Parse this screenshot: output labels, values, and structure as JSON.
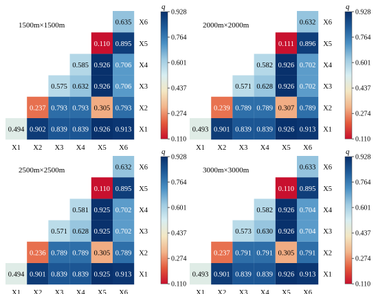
{
  "colorbar": {
    "label": "q",
    "min": 0.11,
    "max": 0.928,
    "ticks": [
      "0.928",
      "0.764",
      "0.601",
      "0.437",
      "0.274",
      "0.110"
    ],
    "colors": [
      "#c8102e",
      "#e45a3c",
      "#f2b48a",
      "#f3e7c3",
      "#d8eef2",
      "#9ecae1",
      "#4a90c4",
      "#1f5c9a",
      "#08306b"
    ]
  },
  "row_labels": [
    "X6",
    "X5",
    "X4",
    "X3",
    "X2",
    "X1"
  ],
  "col_labels": [
    "X1",
    "X2",
    "X3",
    "X4",
    "X5",
    "X6"
  ],
  "chart_data": [
    {
      "type": "heatmap",
      "title": "1500m×1500m",
      "cells": [
        [
          null,
          null,
          null,
          null,
          null,
          0.635
        ],
        [
          null,
          null,
          null,
          null,
          0.11,
          0.895
        ],
        [
          null,
          null,
          null,
          0.585,
          0.926,
          0.706
        ],
        [
          null,
          null,
          0.575,
          0.632,
          0.926,
          0.706
        ],
        [
          null,
          0.237,
          0.793,
          0.793,
          0.305,
          0.793
        ],
        [
          0.494,
          0.902,
          0.839,
          0.839,
          0.926,
          0.913
        ]
      ]
    },
    {
      "type": "heatmap",
      "title": "2000m×2000m",
      "cells": [
        [
          null,
          null,
          null,
          null,
          null,
          0.632
        ],
        [
          null,
          null,
          null,
          null,
          0.111,
          0.896
        ],
        [
          null,
          null,
          null,
          0.582,
          0.926,
          0.702
        ],
        [
          null,
          null,
          0.571,
          0.628,
          0.926,
          0.702
        ],
        [
          null,
          0.239,
          0.789,
          0.789,
          0.307,
          0.789
        ],
        [
          0.493,
          0.901,
          0.839,
          0.839,
          0.926,
          0.913
        ]
      ]
    },
    {
      "type": "heatmap",
      "title": "2500m×2500m",
      "cells": [
        [
          null,
          null,
          null,
          null,
          null,
          0.632
        ],
        [
          null,
          null,
          null,
          null,
          0.11,
          0.895
        ],
        [
          null,
          null,
          null,
          0.581,
          0.925,
          0.702
        ],
        [
          null,
          null,
          0.571,
          0.628,
          0.925,
          0.702
        ],
        [
          null,
          0.236,
          0.789,
          0.789,
          0.305,
          0.789
        ],
        [
          0.494,
          0.901,
          0.839,
          0.839,
          0.925,
          0.913
        ]
      ]
    },
    {
      "type": "heatmap",
      "title": "3000m×3000m",
      "cells": [
        [
          null,
          null,
          null,
          null,
          null,
          0.633
        ],
        [
          null,
          null,
          null,
          null,
          0.11,
          0.895
        ],
        [
          null,
          null,
          null,
          0.582,
          0.926,
          0.704
        ],
        [
          null,
          null,
          0.573,
          0.63,
          0.926,
          0.704
        ],
        [
          null,
          0.237,
          0.791,
          0.791,
          0.305,
          0.791
        ],
        [
          0.493,
          0.901,
          0.839,
          0.839,
          0.926,
          0.913
        ]
      ]
    }
  ]
}
